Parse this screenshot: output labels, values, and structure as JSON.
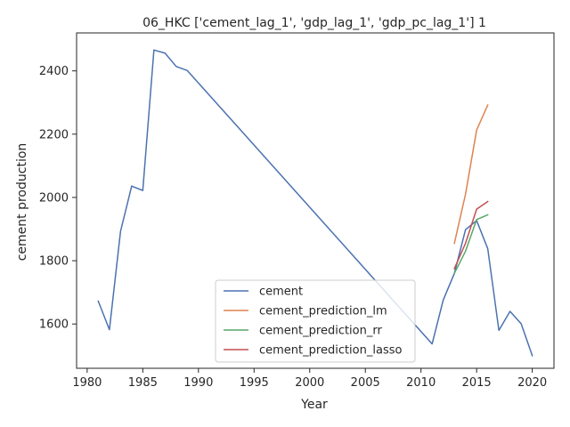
{
  "chart_data": {
    "type": "line",
    "title": "06_HKC ['cement_lag_1', 'gdp_lag_1', 'gdp_pc_lag_1'] 1",
    "xlabel": "Year",
    "ylabel": "cement production",
    "xlim": [
      1979.05,
      2021.95
    ],
    "ylim": [
      1460,
      2520
    ],
    "xticks": [
      1980,
      1985,
      1990,
      1995,
      2000,
      2005,
      2010,
      2015,
      2020
    ],
    "yticks": [
      1600,
      1800,
      2000,
      2200,
      2400
    ],
    "grid": false,
    "legend_position": "lower-center",
    "series": [
      {
        "name": "cement",
        "color": "#4c72b0",
        "points": [
          [
            1981,
            1672
          ],
          [
            1982,
            1582
          ],
          [
            1983,
            1893
          ],
          [
            1984,
            2036
          ],
          [
            1985,
            2022
          ],
          [
            1986,
            2466
          ],
          [
            1987,
            2456
          ],
          [
            1988,
            2414
          ],
          [
            1989,
            2401
          ],
          [
            2011,
            1537
          ],
          [
            2012,
            1676
          ],
          [
            2013,
            1760
          ],
          [
            2014,
            1898
          ],
          [
            2015,
            1927
          ],
          [
            2016,
            1838
          ],
          [
            2017,
            1580
          ],
          [
            2018,
            1640
          ],
          [
            2019,
            1601
          ],
          [
            2020,
            1500
          ]
        ]
      },
      {
        "name": "cement_prediction_lm",
        "color": "#dd8452",
        "points": [
          [
            2013,
            1855
          ],
          [
            2014,
            2010
          ],
          [
            2015,
            2213
          ],
          [
            2016,
            2292
          ]
        ]
      },
      {
        "name": "cement_prediction_rr",
        "color": "#55a868",
        "points": [
          [
            2013,
            1760
          ],
          [
            2014,
            1830
          ],
          [
            2015,
            1930
          ],
          [
            2016,
            1945
          ]
        ]
      },
      {
        "name": "cement_prediction_lasso",
        "color": "#c44e52",
        "points": [
          [
            2013,
            1775
          ],
          [
            2014,
            1855
          ],
          [
            2015,
            1963
          ],
          [
            2016,
            1987
          ]
        ]
      }
    ]
  }
}
